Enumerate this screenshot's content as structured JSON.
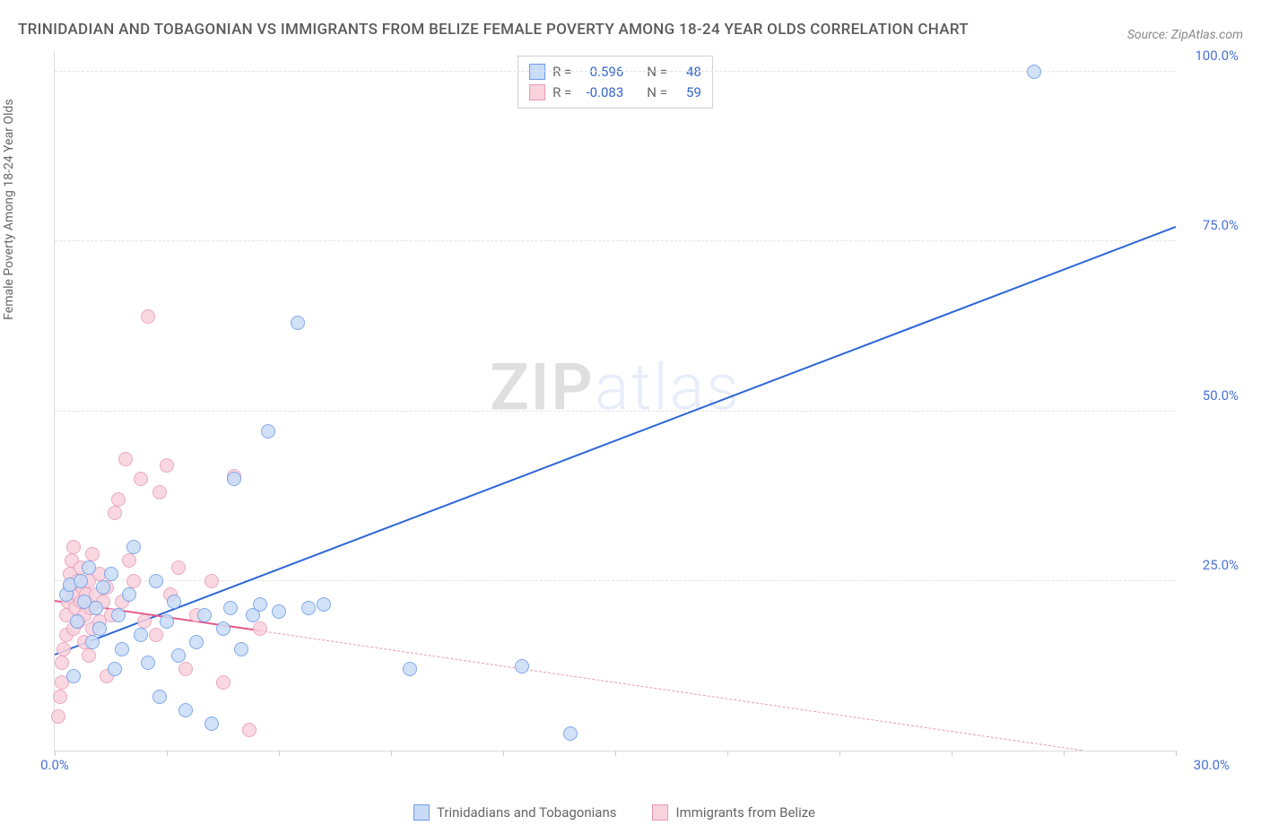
{
  "title": "TRINIDADIAN AND TOBAGONIAN VS IMMIGRANTS FROM BELIZE FEMALE POVERTY AMONG 18-24 YEAR OLDS CORRELATION CHART",
  "source": "Source: ZipAtlas.com",
  "watermark_bold": "ZIP",
  "watermark_light": "atlas",
  "y_axis_label": "Female Poverty Among 18-24 Year Olds",
  "chart": {
    "type": "scatter",
    "xlim": [
      0,
      30
    ],
    "ylim": [
      0,
      103
    ],
    "x_ticks": [
      0,
      3,
      6,
      9,
      12,
      15,
      18,
      21,
      24,
      27,
      30
    ],
    "x_tick_labels": {
      "0": "0.0%",
      "30": "30.0%"
    },
    "y_gridlines": [
      25,
      50,
      75,
      100
    ],
    "y_tick_labels": {
      "25": "25.0%",
      "50": "50.0%",
      "75": "75.0%",
      "100": "100.0%"
    },
    "background_color": "#ffffff",
    "grid_color": "#e4e4e4",
    "axis_color": "#dcdcdc",
    "label_color": "#4a72d6",
    "point_radius": 7,
    "series": [
      {
        "name": "Trinidadians and Tobagonians",
        "fill": "#c9dcf6",
        "stroke": "#6b9be8",
        "trend_color": "#2d66d8",
        "r_label": "R =",
        "r_value": "0.596",
        "n_label": "N =",
        "n_value": "48",
        "trend": {
          "x1": 0,
          "y1": 14,
          "x2": 30,
          "y2": 77,
          "solid_until_x": 30
        },
        "points": [
          [
            0.3,
            23
          ],
          [
            0.4,
            24.5
          ],
          [
            0.5,
            11
          ],
          [
            0.6,
            19
          ],
          [
            0.7,
            25
          ],
          [
            0.8,
            22
          ],
          [
            0.9,
            27
          ],
          [
            1.0,
            16
          ],
          [
            1.1,
            21
          ],
          [
            1.2,
            18
          ],
          [
            1.3,
            24
          ],
          [
            1.5,
            26
          ],
          [
            1.6,
            12
          ],
          [
            1.7,
            20
          ],
          [
            1.8,
            15
          ],
          [
            2.0,
            23
          ],
          [
            2.1,
            30
          ],
          [
            2.3,
            17
          ],
          [
            2.5,
            13
          ],
          [
            2.7,
            25
          ],
          [
            2.8,
            8
          ],
          [
            3.0,
            19
          ],
          [
            3.2,
            22
          ],
          [
            3.3,
            14
          ],
          [
            3.5,
            6
          ],
          [
            3.8,
            16
          ],
          [
            4.0,
            20
          ],
          [
            4.2,
            4
          ],
          [
            4.5,
            18
          ],
          [
            4.7,
            21
          ],
          [
            4.8,
            40
          ],
          [
            5.0,
            15
          ],
          [
            5.3,
            20
          ],
          [
            5.5,
            21.5
          ],
          [
            5.7,
            47
          ],
          [
            6.0,
            20.5
          ],
          [
            6.5,
            63
          ],
          [
            6.8,
            21
          ],
          [
            7.2,
            21.5
          ],
          [
            9.5,
            12
          ],
          [
            12.5,
            12.5
          ],
          [
            13.8,
            2.5
          ],
          [
            26.2,
            100
          ]
        ]
      },
      {
        "name": "Immigrants from Belize",
        "fill": "#f8d2dd",
        "stroke": "#e89ab6",
        "trend_color": "#e65a8a",
        "r_label": "R =",
        "r_value": "-0.083",
        "n_label": "N =",
        "n_value": "59",
        "trend": {
          "x1": 0,
          "y1": 22,
          "x2": 30,
          "y2": -2,
          "solid_until_x": 5.5
        },
        "points": [
          [
            0.1,
            5
          ],
          [
            0.15,
            8
          ],
          [
            0.2,
            10
          ],
          [
            0.2,
            13
          ],
          [
            0.25,
            15
          ],
          [
            0.3,
            17
          ],
          [
            0.3,
            20
          ],
          [
            0.35,
            22
          ],
          [
            0.4,
            24
          ],
          [
            0.4,
            26
          ],
          [
            0.45,
            28
          ],
          [
            0.5,
            30
          ],
          [
            0.5,
            18
          ],
          [
            0.55,
            21
          ],
          [
            0.6,
            23
          ],
          [
            0.6,
            25
          ],
          [
            0.65,
            19
          ],
          [
            0.7,
            22
          ],
          [
            0.7,
            27
          ],
          [
            0.75,
            24
          ],
          [
            0.8,
            20
          ],
          [
            0.8,
            16
          ],
          [
            0.85,
            23
          ],
          [
            0.9,
            25
          ],
          [
            0.9,
            14
          ],
          [
            0.95,
            21
          ],
          [
            1.0,
            18
          ],
          [
            1.0,
            29
          ],
          [
            1.1,
            23
          ],
          [
            1.2,
            19
          ],
          [
            1.2,
            26
          ],
          [
            1.3,
            22
          ],
          [
            1.4,
            11
          ],
          [
            1.4,
            24
          ],
          [
            1.5,
            20
          ],
          [
            1.6,
            35
          ],
          [
            1.7,
            37
          ],
          [
            1.8,
            22
          ],
          [
            1.9,
            43
          ],
          [
            2.0,
            28
          ],
          [
            2.1,
            25
          ],
          [
            2.3,
            40
          ],
          [
            2.4,
            19
          ],
          [
            2.5,
            64
          ],
          [
            2.7,
            17
          ],
          [
            2.8,
            38
          ],
          [
            3.0,
            42
          ],
          [
            3.1,
            23
          ],
          [
            3.3,
            27
          ],
          [
            3.5,
            12
          ],
          [
            3.8,
            20
          ],
          [
            4.2,
            25
          ],
          [
            4.5,
            10
          ],
          [
            4.8,
            40.5
          ],
          [
            5.2,
            3
          ],
          [
            5.5,
            18
          ]
        ]
      }
    ]
  }
}
